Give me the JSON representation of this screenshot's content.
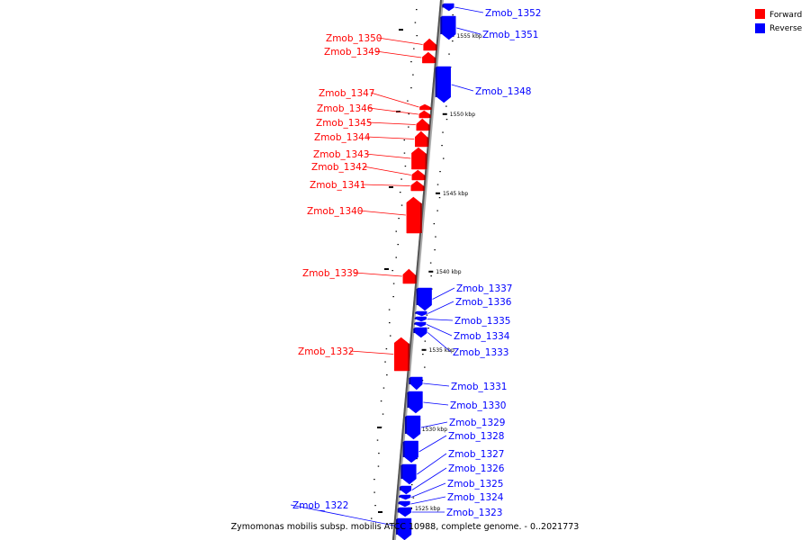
{
  "caption": "Zymomonas mobilis subsp. mobilis ATCC 10988, complete genome. - 0..2021773",
  "legend": [
    {
      "label": "Forward",
      "color": "#ff0000"
    },
    {
      "label": "Reverse",
      "color": "#0000ff"
    }
  ],
  "colors": {
    "forward": "#ff0000",
    "reverse": "#0000ff",
    "axis": "#555555"
  },
  "ticks": [
    "1555 kbp",
    "1550 kbp",
    "1545 kbp",
    "1540 kbp",
    "1535 kbp",
    "1530 kbp",
    "1525 kbp"
  ],
  "genes": [
    {
      "name": "Zmob_1352",
      "strand": "reverse"
    },
    {
      "name": "Zmob_1351",
      "strand": "reverse"
    },
    {
      "name": "Zmob_1350",
      "strand": "forward"
    },
    {
      "name": "Zmob_1349",
      "strand": "forward"
    },
    {
      "name": "Zmob_1348",
      "strand": "reverse"
    },
    {
      "name": "Zmob_1347",
      "strand": "forward"
    },
    {
      "name": "Zmob_1346",
      "strand": "forward"
    },
    {
      "name": "Zmob_1345",
      "strand": "forward"
    },
    {
      "name": "Zmob_1344",
      "strand": "forward"
    },
    {
      "name": "Zmob_1343",
      "strand": "forward"
    },
    {
      "name": "Zmob_1342",
      "strand": "forward"
    },
    {
      "name": "Zmob_1341",
      "strand": "forward"
    },
    {
      "name": "Zmob_1340",
      "strand": "forward"
    },
    {
      "name": "Zmob_1339",
      "strand": "forward"
    },
    {
      "name": "Zmob_1337",
      "strand": "reverse"
    },
    {
      "name": "Zmob_1336",
      "strand": "reverse"
    },
    {
      "name": "Zmob_1335",
      "strand": "reverse"
    },
    {
      "name": "Zmob_1334",
      "strand": "reverse"
    },
    {
      "name": "Zmob_1333",
      "strand": "reverse"
    },
    {
      "name": "Zmob_1332",
      "strand": "forward"
    },
    {
      "name": "Zmob_1331",
      "strand": "reverse"
    },
    {
      "name": "Zmob_1330",
      "strand": "reverse"
    },
    {
      "name": "Zmob_1329",
      "strand": "reverse"
    },
    {
      "name": "Zmob_1328",
      "strand": "reverse"
    },
    {
      "name": "Zmob_1327",
      "strand": "reverse"
    },
    {
      "name": "Zmob_1326",
      "strand": "reverse"
    },
    {
      "name": "Zmob_1325",
      "strand": "reverse"
    },
    {
      "name": "Zmob_1324",
      "strand": "reverse"
    },
    {
      "name": "Zmob_1323",
      "strand": "reverse"
    },
    {
      "name": "Zmob_1322",
      "strand": "reverse"
    }
  ]
}
